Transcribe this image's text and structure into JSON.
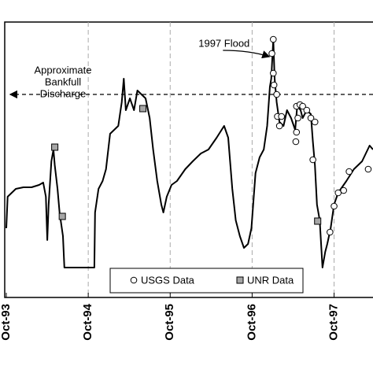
{
  "chart_data": {
    "type": "line",
    "xlim": [
      0,
      53.7
    ],
    "xticks": [
      {
        "value": 0,
        "label": "Oct-93"
      },
      {
        "value": 12,
        "label": "Oct-94"
      },
      {
        "value": 24,
        "label": "Oct-95"
      },
      {
        "value": 36,
        "label": "Oct-96"
      },
      {
        "value": 48,
        "label": "Oct-97"
      }
    ],
    "ylim": [
      0,
      350
    ],
    "grid": true,
    "legend": "bottom",
    "reference_line": {
      "value": 258,
      "label": [
        "Approximate",
        "Bankfull",
        "Discharge"
      ]
    },
    "annotation": {
      "text": "1997 Flood",
      "x": 39.1,
      "y": 328
    },
    "series": [
      {
        "color": "#000000",
        "x": [
          0,
          0.2,
          0.8,
          1.4,
          2.5,
          3.7,
          4.8,
          5.4,
          5.8,
          6.0,
          6.2,
          6.6,
          6.9,
          7.1,
          7.5,
          7.8,
          8.3,
          8.5,
          10.6,
          12.9,
          13.0,
          13.5,
          14.1,
          14.6,
          15.2,
          15.8,
          16.4,
          16.9,
          17.2,
          17.5,
          18.1,
          18.7,
          19.2,
          19.8,
          20.4,
          21.0,
          21.5,
          22.1,
          22.7,
          23.0,
          23.5,
          24.2,
          25.0,
          26.2,
          27.3,
          28.5,
          29.6,
          30.8,
          31.9,
          32.5,
          33.1,
          33.6,
          34.2,
          34.8,
          35.4,
          35.9,
          36.5,
          37.1,
          37.7,
          38.2,
          38.6,
          38.8,
          39.1,
          39.3,
          39.6,
          40.0,
          40.6,
          41.1,
          41.7,
          42.3,
          42.6,
          43.1,
          43.4,
          44.0,
          44.6,
          44.9,
          45.2,
          45.5,
          45.9,
          46.3,
          46.7,
          47.0,
          47.5,
          48.0,
          48.6,
          49.8,
          50.9,
          52.1,
          53.2,
          53.7
        ],
        "values": [
          88,
          128,
          133,
          138,
          140,
          140,
          143,
          146,
          128,
          73,
          118,
          173,
          188,
          168,
          138,
          108,
          78,
          38,
          38,
          38,
          108,
          138,
          148,
          163,
          208,
          213,
          218,
          248,
          278,
          238,
          253,
          238,
          263,
          258,
          253,
          228,
          188,
          148,
          118,
          108,
          128,
          143,
          148,
          163,
          173,
          183,
          188,
          203,
          218,
          203,
          138,
          98,
          78,
          63,
          68,
          88,
          158,
          178,
          188,
          218,
          268,
          278,
          328,
          278,
          248,
          223,
          218,
          238,
          228,
          213,
          243,
          238,
          228,
          238,
          233,
          198,
          168,
          118,
          98,
          38,
          58,
          68,
          88,
          118,
          133,
          148,
          163,
          173,
          193,
          188
        ]
      },
      {
        "name": "USGS Data",
        "marker": "circle",
        "color": "#ffffff",
        "x": [
          39.1,
          38.9,
          39.1,
          39.2,
          39.6,
          39.7,
          40.0,
          40.3,
          42.5,
          43.0,
          43.4,
          42.7,
          44.0,
          44.6,
          45.2,
          42.5,
          42.4,
          44.9,
          47.4,
          48.0,
          48.6,
          49.4,
          50.2,
          53.0
        ],
        "values": [
          328,
          310,
          285,
          270,
          258,
          230,
          218,
          230,
          243,
          245,
          243,
          228,
          238,
          228,
          223,
          210,
          198,
          175,
          83,
          116,
          133,
          136,
          160,
          163
        ]
      },
      {
        "name": "UNR Data",
        "marker": "square",
        "color": "#a6a6a6",
        "x": [
          7.1,
          8.2,
          20.0,
          45.6
        ],
        "values": [
          191,
          103,
          240,
          97
        ]
      }
    ]
  }
}
